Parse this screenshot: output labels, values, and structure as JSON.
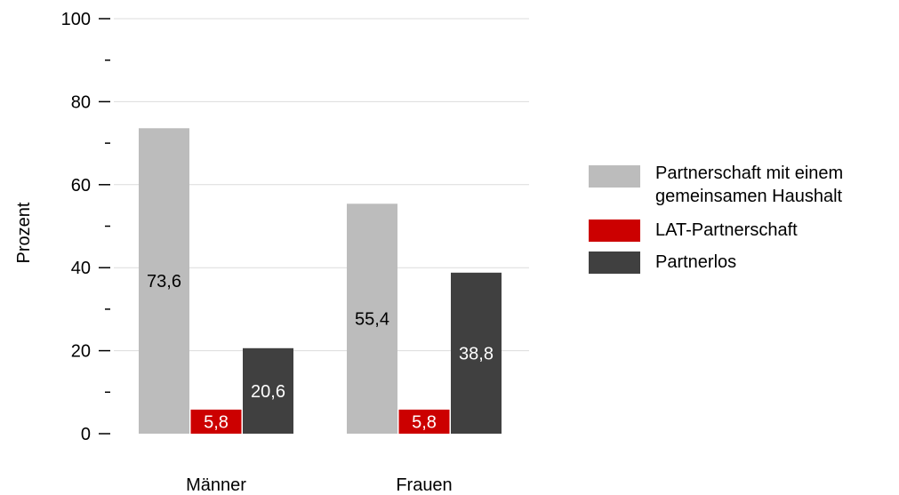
{
  "chart_data": {
    "type": "bar",
    "title": "",
    "xlabel": "",
    "ylabel": "Prozent",
    "ylim": [
      0,
      100
    ],
    "yticks_major": [
      0,
      20,
      40,
      60,
      80,
      100
    ],
    "yticks_minor": [
      10,
      30,
      50,
      70,
      90
    ],
    "grid": true,
    "legend_position": "right",
    "categories": [
      "Männer",
      "Frauen"
    ],
    "series": [
      {
        "name": "Partnerschaft mit einem gemeinsamen Haushalt",
        "color": "#bcbcbc",
        "label_color": "#000000",
        "values": [
          73.6,
          55.4
        ],
        "labels": [
          "73,6",
          "55,4"
        ]
      },
      {
        "name": "LAT-Partnerschaft",
        "color": "#cc0000",
        "label_color": "#ffffff",
        "values": [
          5.8,
          5.8
        ],
        "labels": [
          "5,8",
          "5,8"
        ]
      },
      {
        "name": "Partnerlos",
        "color": "#404040",
        "label_color": "#ffffff",
        "values": [
          20.6,
          38.8
        ],
        "labels": [
          "20,6",
          "38,8"
        ]
      }
    ]
  },
  "legend": {
    "items": [
      {
        "line1": "Partnerschaft mit einem",
        "line2": "gemeinsamen Haushalt",
        "color": "#bcbcbc"
      },
      {
        "line1": "LAT-Partnerschaft",
        "color": "#cc0000"
      },
      {
        "line1": "Partnerlos",
        "color": "#404040"
      }
    ]
  }
}
